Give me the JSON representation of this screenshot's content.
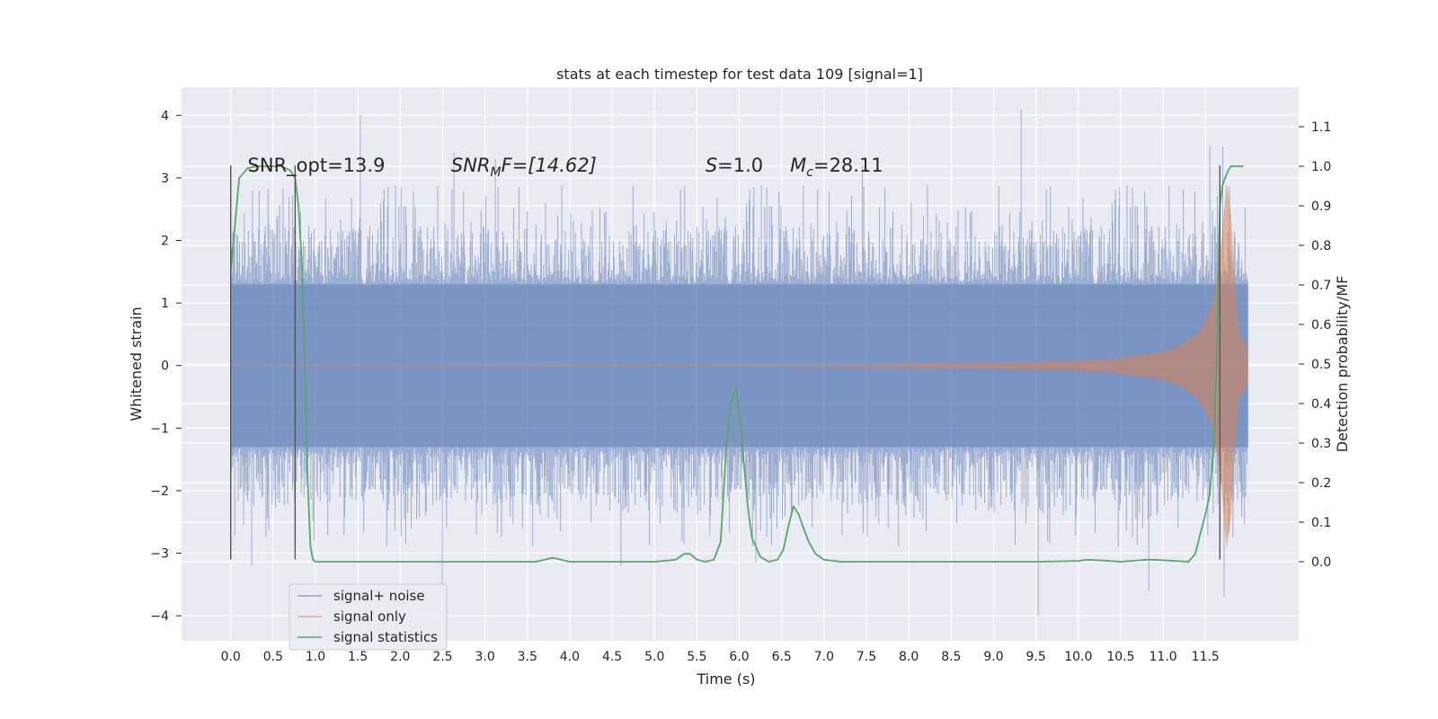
{
  "chart_data": {
    "type": "line",
    "title": "stats at each timestep for test data 109 [signal=1]",
    "xlabel": "Time (s)",
    "ylabel": "Whitened strain",
    "ylabel_right": "Detection probability/MF",
    "xlim": [
      -0.58,
      12.6
    ],
    "ylim": [
      -4.4,
      4.45
    ],
    "ylim_right": [
      -0.2,
      1.2
    ],
    "x_ticks": [
      0.0,
      0.5,
      1.0,
      1.5,
      2.0,
      2.5,
      3.0,
      3.5,
      4.0,
      4.5,
      5.0,
      5.5,
      6.0,
      6.5,
      7.0,
      7.5,
      8.0,
      8.5,
      9.0,
      9.5,
      10.0,
      10.5,
      11.0,
      11.5
    ],
    "x_tick_labels": [
      "0.0",
      "0.5",
      "1.0",
      "1.5",
      "2.0",
      "2.5",
      "3.0",
      "3.5",
      "4.0",
      "4.5",
      "5.0",
      "5.5",
      "6.0",
      "6.5",
      "7.0",
      "7.5",
      "8.0",
      "8.5",
      "9.0",
      "9.5",
      "10.0",
      "10.5",
      "11.0",
      "11.5"
    ],
    "y_ticks": [
      -4,
      -3,
      -2,
      -1,
      0,
      1,
      2,
      3,
      4
    ],
    "y_tick_labels": [
      "−4",
      "−3",
      "−2",
      "−1",
      "0",
      "1",
      "2",
      "3",
      "4"
    ],
    "y_ticks_right": [
      0.0,
      0.1,
      0.2,
      0.3,
      0.4,
      0.5,
      0.6,
      0.7,
      0.8,
      0.9,
      1.0,
      1.1
    ],
    "y_tick_labels_right": [
      "0.0",
      "0.1",
      "0.2",
      "0.3",
      "0.4",
      "0.5",
      "0.6",
      "0.7",
      "0.8",
      "0.9",
      "1.0",
      "1.1"
    ],
    "grid": true,
    "legend_position": "lower-left",
    "series": [
      {
        "name": "signal+ noise",
        "color": "#4c72b0",
        "axis": "left",
        "kind": "dense noisy waveform",
        "x_range": [
          0.0,
          12.0
        ],
        "typical_range": [
          -1.3,
          1.3
        ],
        "typical_peak": 2.0,
        "peaks": [
          [
            1.53,
            4.0
          ],
          [
            9.33,
            4.1
          ],
          [
            2.63,
            3.4
          ],
          [
            3.12,
            3.3
          ],
          [
            7.45,
            3.2
          ],
          [
            11.7,
            3.5
          ],
          [
            11.55,
            3.5
          ],
          [
            0.55,
            2.4
          ]
        ],
        "troughs": [
          [
            9.53,
            -4.0
          ],
          [
            2.5,
            -3.6
          ],
          [
            0.25,
            -3.2
          ],
          [
            4.6,
            -3.2
          ],
          [
            6.2,
            -3.15
          ],
          [
            10.83,
            -3.6
          ],
          [
            11.72,
            -3.7
          ]
        ]
      },
      {
        "name": "signal only",
        "color": "#dd8452",
        "axis": "left",
        "kind": "chirp",
        "x": [
          0.0,
          4.0,
          7.0,
          8.0,
          9.0,
          9.5,
          10.0,
          10.5,
          11.0,
          11.2,
          11.4,
          11.5,
          11.55,
          11.6,
          11.65,
          11.7,
          11.75,
          11.8,
          11.85,
          11.9,
          12.0
        ],
        "amplitude": [
          0.005,
          0.01,
          0.02,
          0.03,
          0.05,
          0.06,
          0.08,
          0.12,
          0.22,
          0.32,
          0.5,
          0.7,
          0.85,
          1.1,
          1.5,
          2.1,
          2.9,
          2.4,
          1.2,
          0.5,
          0.3
        ]
      },
      {
        "name": "signal statistics",
        "color": "#55a868",
        "axis": "right",
        "x": [
          0.0,
          0.05,
          0.1,
          0.2,
          0.3,
          0.5,
          0.6,
          0.7,
          0.76,
          0.8,
          0.84,
          0.88,
          0.91,
          0.94,
          0.97,
          1.0,
          1.5,
          3.6,
          3.8,
          4.0,
          4.2,
          5.0,
          5.25,
          5.35,
          5.42,
          5.5,
          5.6,
          5.7,
          5.78,
          5.85,
          5.91,
          5.96,
          6.0,
          6.05,
          6.1,
          6.15,
          6.25,
          6.35,
          6.45,
          6.52,
          6.58,
          6.64,
          6.7,
          6.75,
          6.82,
          6.9,
          7.0,
          7.2,
          7.5,
          8.5,
          9.5,
          10.0,
          10.1,
          10.3,
          10.5,
          10.8,
          10.9,
          11.3,
          11.38,
          11.45,
          11.5,
          11.55,
          11.6,
          11.63,
          11.65,
          11.67,
          11.7,
          11.73,
          11.77,
          11.8,
          11.85,
          11.95
        ],
        "y": [
          0.74,
          0.85,
          0.97,
          0.995,
          1.0,
          1.0,
          1.0,
          0.99,
          0.97,
          0.9,
          0.75,
          0.45,
          0.2,
          0.04,
          0.005,
          0.0,
          0.0,
          0.0,
          0.01,
          0.0,
          0.0,
          0.0,
          0.005,
          0.02,
          0.02,
          0.005,
          0.0,
          0.005,
          0.05,
          0.3,
          0.41,
          0.44,
          0.38,
          0.26,
          0.14,
          0.06,
          0.012,
          0.0,
          0.005,
          0.03,
          0.09,
          0.14,
          0.12,
          0.09,
          0.05,
          0.02,
          0.005,
          0.0,
          0.0,
          0.0,
          0.0,
          0.002,
          0.005,
          0.003,
          0.0,
          0.005,
          0.005,
          0.0,
          0.02,
          0.08,
          0.12,
          0.17,
          0.3,
          0.5,
          0.7,
          0.9,
          0.95,
          0.97,
          0.99,
          1.0,
          1.0,
          1.0
        ]
      }
    ],
    "vertical_markers": [
      {
        "x": 0.0,
        "y_range": [
          -3.1,
          3.2
        ]
      },
      {
        "x": 0.76,
        "y_range": [
          -3.1,
          3.2
        ]
      },
      {
        "x": 11.67,
        "y_range": [
          -3.1,
          3.2
        ]
      }
    ],
    "annotations": [
      {
        "text": "SNR_opt=13.9",
        "x": 0.2,
        "y": 3.1
      },
      {
        "text": "SNR",
        "sub": "M",
        "after": "F=[14.62]",
        "italic": true,
        "x": 2.6,
        "y": 3.1
      },
      {
        "text": "S",
        "after": "=1.0",
        "italic": true,
        "x": 5.6,
        "y": 3.1
      },
      {
        "text": "M",
        "sub": "c",
        "after": "=28.11",
        "italic": true,
        "x": 6.6,
        "y": 3.1
      }
    ]
  }
}
